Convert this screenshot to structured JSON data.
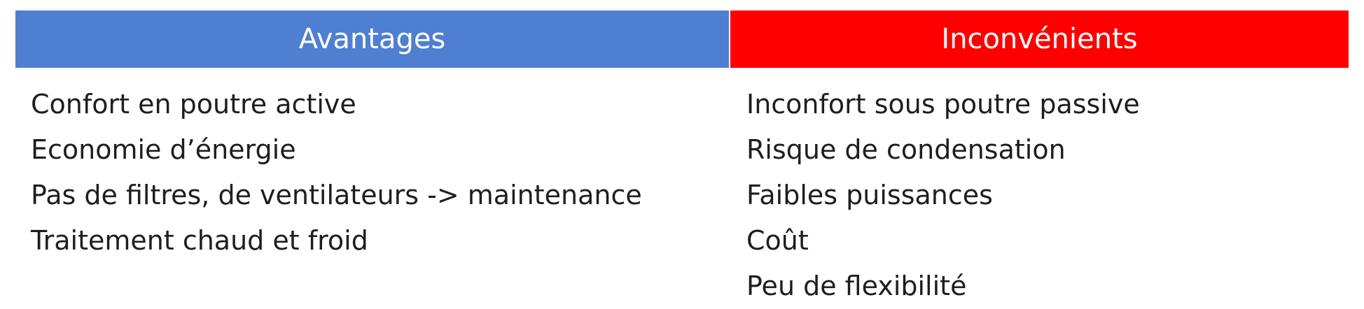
{
  "header": {
    "left_label": "Avantages",
    "right_label": "Inconvénients"
  },
  "colors": {
    "left_header_bg": "#4f7fd1",
    "right_header_bg": "#fe0000",
    "header_text": "#ffffff",
    "body_text": "#1e1e1e"
  },
  "advantages": [
    "Confort en poutre active",
    "Economie d’énergie",
    "Pas de filtres, de ventilateurs -> maintenance",
    "Traitement chaud et froid"
  ],
  "disadvantages": [
    "Inconfort sous poutre passive",
    "Risque de condensation",
    "Faibles puissances",
    "Coût",
    "Peu de flexibilité"
  ]
}
